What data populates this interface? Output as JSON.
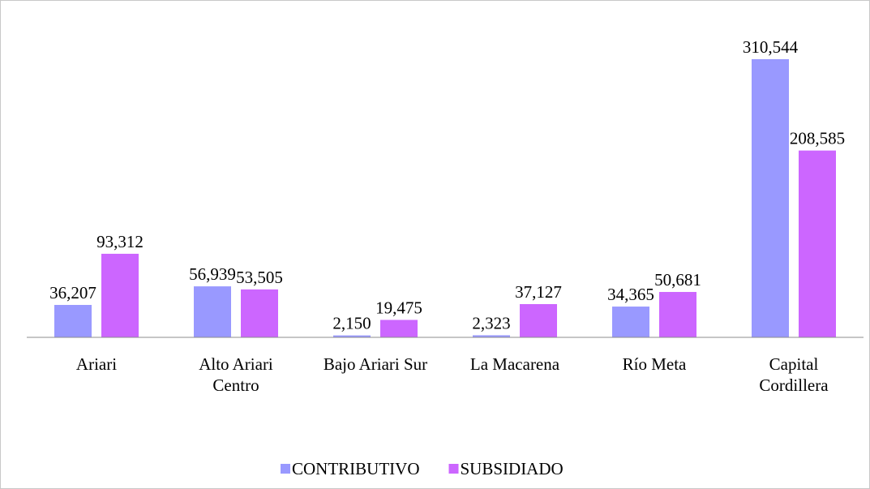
{
  "chart_data": {
    "type": "bar",
    "categories": [
      "Ariari",
      "Alto Ariari\nCentro",
      "Bajo Ariari Sur",
      "La Macarena",
      "Río Meta",
      "Capital\nCordillera"
    ],
    "series": [
      {
        "name": "CONTRIBUTIVO",
        "color": "#9999ff",
        "values": [
          36207,
          56939,
          2150,
          2323,
          34365,
          310544
        ],
        "value_labels": [
          "36,207",
          "56,939",
          "2,150",
          "2,323",
          "34,365",
          "310,544"
        ]
      },
      {
        "name": "SUBSIDIADO",
        "color": "#cc66ff",
        "values": [
          93312,
          53505,
          19475,
          37127,
          50681,
          208585
        ],
        "value_labels": [
          "93,312",
          "53,505",
          "19,475",
          "37,127",
          "50,681",
          "208,585"
        ]
      }
    ],
    "legend": "bottom"
  }
}
